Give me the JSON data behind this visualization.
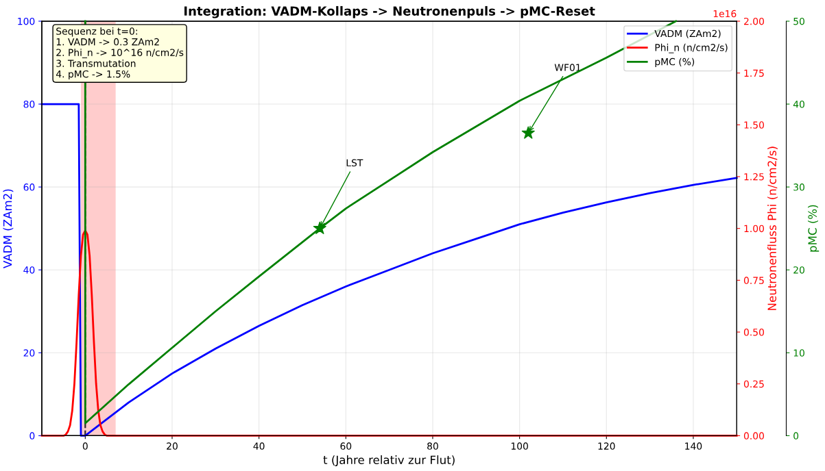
{
  "chart_data": {
    "type": "line",
    "title": "Integration: VADM-Kollaps -> Neutronenpuls -> pMC-Reset",
    "xlabel": "t (Jahre relativ zur Flut)",
    "ylabel": "VADM (ZAm2)",
    "y2label": "Neutronenfluss Phi (n/cm2/s)",
    "y3label": "pMC (%)",
    "xlim": [
      -10,
      150
    ],
    "xticks": [
      0,
      20,
      40,
      60,
      80,
      100,
      120,
      140
    ],
    "ylim": [
      0,
      100
    ],
    "yticks": [
      0,
      20,
      40,
      60,
      80,
      100
    ],
    "y2lim": [
      0,
      2
    ],
    "y2ticks": [
      {
        "value": 0,
        "label": "0.00"
      },
      {
        "value": 0.25,
        "label": "0.25"
      },
      {
        "value": 0.5,
        "label": "0.50"
      },
      {
        "value": 0.75,
        "label": "0.75"
      },
      {
        "value": 1,
        "label": "1.00"
      },
      {
        "value": 1.25,
        "label": "1.25"
      },
      {
        "value": 1.5,
        "label": "1.50"
      },
      {
        "value": 1.75,
        "label": "1.75"
      },
      {
        "value": 2,
        "label": "2.00"
      }
    ],
    "y3lim": [
      0,
      50
    ],
    "y3ticks": [
      0,
      10,
      20,
      30,
      40,
      50
    ],
    "grid": true,
    "legend": "top right",
    "series": [
      {
        "name": "VADM (ZAm2)",
        "color": "#0000ff",
        "axis": "y",
        "x": [
          -10,
          -1.5,
          -1.0,
          0,
          10,
          20,
          30,
          40,
          50,
          60,
          70,
          80,
          90,
          100,
          110,
          120,
          130,
          140,
          150
        ],
        "values": [
          80,
          80,
          0,
          0,
          8,
          15,
          21,
          26.5,
          31.5,
          36,
          40,
          44,
          47.5,
          51,
          53.8,
          56.3,
          58.5,
          60.5,
          62.2
        ]
      },
      {
        "name": "Phi_n (n/cm2/s)",
        "color": "#ff0000",
        "axis": "y2",
        "x": [
          -10,
          -5,
          -4.5,
          -4,
          -3.5,
          -3,
          -2.5,
          -2,
          -1.5,
          -1,
          -0.5,
          0,
          0.5,
          1,
          1.5,
          2,
          2.5,
          3,
          3.5,
          4,
          4.5,
          5,
          150
        ],
        "values": [
          0,
          0,
          0.005,
          0.02,
          0.05,
          0.12,
          0.25,
          0.45,
          0.68,
          0.87,
          0.97,
          0.99,
          0.97,
          0.87,
          0.68,
          0.45,
          0.25,
          0.12,
          0.05,
          0.02,
          0.005,
          0,
          0
        ]
      },
      {
        "name": "pMC (%)",
        "color": "#008000",
        "axis": "y3",
        "x": [
          0,
          0,
          10,
          20,
          30,
          40,
          54,
          60,
          80,
          100,
          120,
          136
        ],
        "values": [
          50,
          1.5,
          6.2,
          10.6,
          15,
          19.2,
          25,
          27.4,
          34.2,
          40.4,
          45.6,
          50
        ]
      },
      {
        "type": "scatter",
        "color": "#008000",
        "axis": "y3",
        "marker": "star",
        "x": [
          54,
          102
        ],
        "values": [
          25,
          36.5
        ]
      }
    ],
    "ref_lines": [
      {
        "axis": "x",
        "value": 0,
        "color": "#000000",
        "line_style": "dashed"
      }
    ],
    "bands": [
      {
        "axis": "x",
        "from": -1,
        "to": 7,
        "color": "#ffcccc"
      }
    ],
    "annotations": [
      "Sequenz bei t=0:\n1. VADM -> 0.3 ZAm2\n2. Phi_n -> 10^16 n/cm2/s\n3. Transmutation\n4. pMC -> 1.5%",
      "1e16",
      {
        "text": "LST",
        "x": 54,
        "y": 50
      },
      {
        "text": "WF01",
        "x": 102,
        "y": 73
      }
    ]
  }
}
